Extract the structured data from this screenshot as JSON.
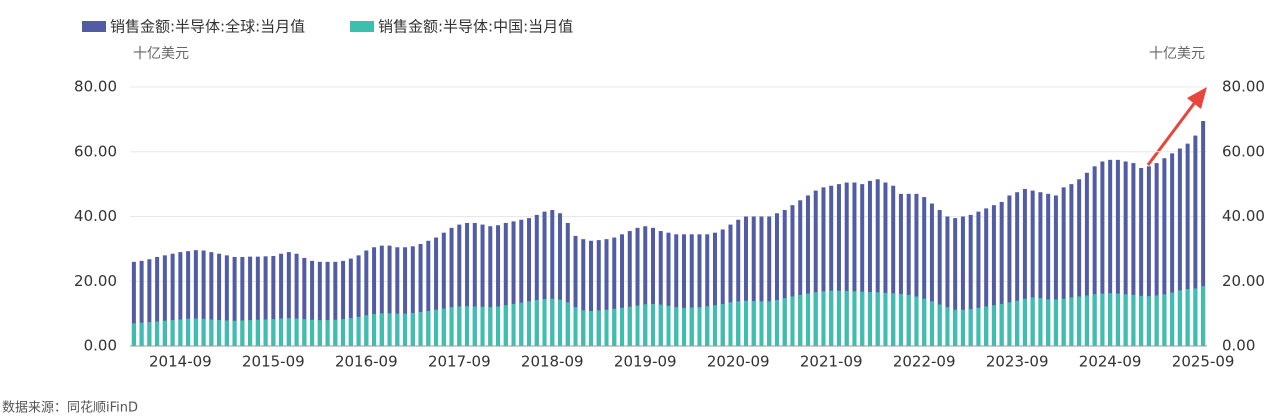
{
  "chart_data": {
    "type": "bar",
    "y_unit_label": "十亿美元",
    "y2_unit_label": "十亿美元",
    "source": "数据来源：同花顺iFinD",
    "categories": [
      null,
      null,
      null,
      null,
      null,
      null,
      "2014-09",
      null,
      null,
      null,
      null,
      null,
      null,
      null,
      null,
      null,
      null,
      null,
      "2015-09",
      null,
      null,
      null,
      null,
      null,
      null,
      null,
      null,
      null,
      null,
      null,
      "2016-09",
      null,
      null,
      null,
      null,
      null,
      null,
      null,
      null,
      null,
      null,
      null,
      "2017-09",
      null,
      null,
      null,
      null,
      null,
      null,
      null,
      null,
      null,
      null,
      null,
      "2018-09",
      null,
      null,
      null,
      null,
      null,
      null,
      null,
      null,
      null,
      null,
      null,
      "2019-09",
      null,
      null,
      null,
      null,
      null,
      null,
      null,
      null,
      null,
      null,
      null,
      "2020-09",
      null,
      null,
      null,
      null,
      null,
      null,
      null,
      null,
      null,
      null,
      null,
      "2021-09",
      null,
      null,
      null,
      null,
      null,
      null,
      null,
      null,
      null,
      null,
      null,
      "2022-09",
      null,
      null,
      null,
      null,
      null,
      null,
      null,
      null,
      null,
      null,
      null,
      "2023-09",
      null,
      null,
      null,
      null,
      null,
      null,
      null,
      null,
      null,
      null,
      null,
      "2024-09",
      null,
      null,
      null,
      null,
      null,
      null,
      null,
      null,
      null,
      null,
      null,
      "2025-09"
    ],
    "series": [
      {
        "name": "销售金额:半导体:全球:当月值",
        "color": "#515ca5",
        "values": [
          26,
          26.3,
          26.8,
          27.5,
          28,
          28.5,
          29,
          29.3,
          29.6,
          29.5,
          29,
          28.5,
          28,
          27.5,
          27.5,
          27.6,
          27.6,
          27.7,
          27.8,
          28.5,
          29,
          28.5,
          27.2,
          26.3,
          26,
          26,
          26,
          26.3,
          27,
          28,
          29.5,
          30.5,
          31,
          31,
          30.5,
          30.5,
          30.8,
          31.5,
          32.5,
          33.5,
          35,
          36.5,
          37.5,
          38,
          38,
          37.5,
          37,
          37.3,
          38,
          38.5,
          39,
          39.5,
          40.5,
          41.5,
          42,
          41,
          38,
          34,
          33,
          32.5,
          32.7,
          33,
          33.5,
          34.5,
          35.5,
          36.5,
          37,
          36.5,
          35.5,
          35,
          34.5,
          34.5,
          34.5,
          34.5,
          34.5,
          35,
          36,
          37.5,
          39,
          40,
          40,
          40,
          40,
          41,
          42,
          43.5,
          45,
          46.5,
          48,
          49,
          49.5,
          50,
          50.5,
          50.5,
          50,
          51,
          51.5,
          50.5,
          49.5,
          47,
          47,
          47,
          46,
          44,
          42,
          40,
          39.5,
          40,
          40.5,
          41.5,
          42.5,
          43.5,
          44.5,
          46.5,
          47.5,
          48.5,
          48,
          47.5,
          47,
          46.5,
          49,
          50,
          51.5,
          53.5,
          55.5,
          57,
          57.5,
          57.5,
          57,
          56.5,
          55,
          55.5,
          56.5,
          58,
          59.5,
          61,
          62.5,
          65,
          69.5
        ]
      },
      {
        "name": "销售金额:半导体:中国:当月值",
        "color": "#3dbfb0",
        "values": [
          7,
          7.2,
          7.4,
          7.6,
          7.8,
          8,
          8.2,
          8.4,
          8.5,
          8.4,
          8.2,
          8,
          7.9,
          7.8,
          7.9,
          8,
          8.1,
          8.2,
          8.3,
          8.5,
          8.6,
          8.5,
          8.3,
          8.1,
          8,
          8,
          8.1,
          8.3,
          8.6,
          9,
          9.5,
          9.9,
          10.1,
          10.1,
          10,
          10,
          10.2,
          10.5,
          10.8,
          11.2,
          11.6,
          12,
          12.2,
          12.3,
          12.2,
          12.1,
          12,
          12.2,
          12.6,
          13,
          13.4,
          13.8,
          14.2,
          14.5,
          14.6,
          14.3,
          13.5,
          12,
          11,
          10.8,
          11,
          11.2,
          11.5,
          11.8,
          12.1,
          12.5,
          12.9,
          13,
          12.8,
          12.4,
          12,
          11.8,
          11.9,
          12,
          12.3,
          12.6,
          13,
          13.5,
          13.8,
          14,
          13.9,
          13.8,
          13.8,
          14.2,
          14.8,
          15.3,
          15.8,
          16.2,
          16.6,
          16.9,
          17.1,
          17.1,
          17,
          16.9,
          16.8,
          16.7,
          16.6,
          16.4,
          16.3,
          16.1,
          15.8,
          15.3,
          14.6,
          13.8,
          12.8,
          12,
          11.2,
          11.2,
          11.4,
          11.8,
          12.2,
          12.6,
          13,
          13.5,
          14,
          14.6,
          15,
          14.8,
          14.4,
          14.4,
          14.6,
          15,
          15.3,
          15.6,
          16,
          16.2,
          16.3,
          16.2,
          16,
          15.8,
          15.5,
          15.4,
          15.6,
          16,
          16.5,
          17.2,
          17.6,
          17.8,
          18.5
        ]
      }
    ],
    "ylim": [
      0,
      80
    ],
    "yticks": [
      {
        "value": 0,
        "label": "0.00"
      },
      {
        "value": 20,
        "label": "20.00"
      },
      {
        "value": 40,
        "label": "40.00"
      },
      {
        "value": 60,
        "label": "60.00"
      },
      {
        "value": 80,
        "label": "80.00"
      }
    ],
    "y2lim": [
      0,
      80
    ],
    "y2ticks": [
      {
        "value": 0,
        "label": "0.00"
      },
      {
        "value": 20,
        "label": "20.00"
      },
      {
        "value": 40,
        "label": "40.00"
      },
      {
        "value": 60,
        "label": "60.00"
      },
      {
        "value": 80,
        "label": "80.00"
      }
    ],
    "grid": true,
    "legend": "top-left"
  }
}
